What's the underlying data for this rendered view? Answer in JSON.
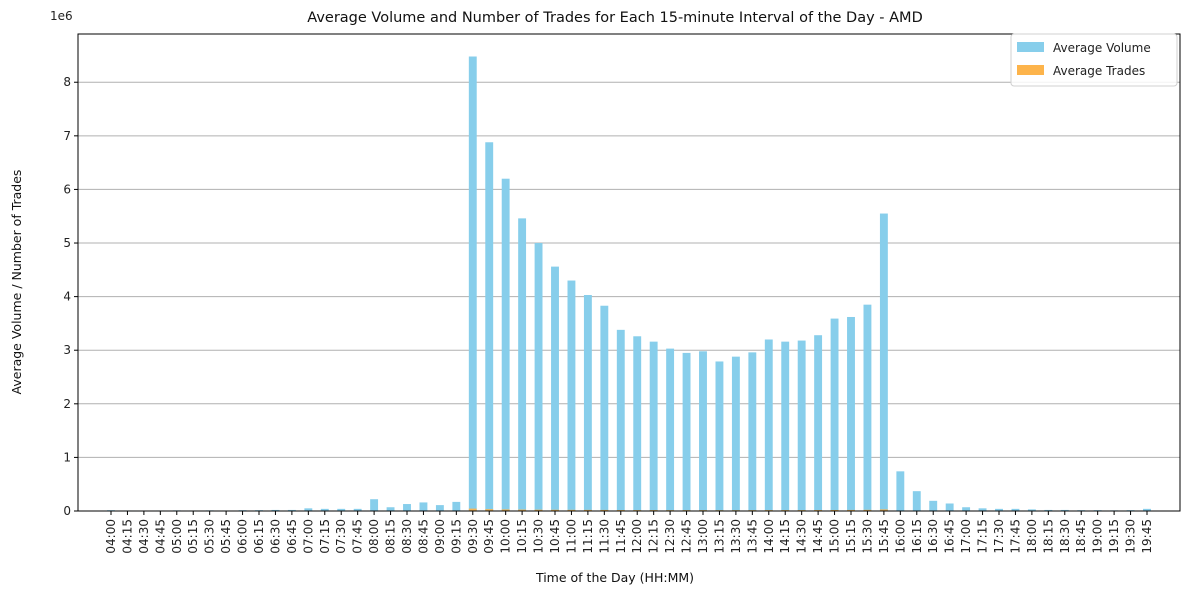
{
  "chart_data": {
    "type": "bar",
    "title": "Average Volume and Number of Trades for Each 15-minute Interval of the Day - AMD",
    "xlabel": "Time of the Day (HH:MM)",
    "ylabel": "Average Volume / Number of Trades",
    "y_scale_note": "1e6",
    "ylim": [
      0,
      8900000
    ],
    "yticks": [
      0,
      1,
      2,
      3,
      4,
      5,
      6,
      7,
      8
    ],
    "grid": "y",
    "legend_position": "top-right",
    "categories": [
      "04:00",
      "04:15",
      "04:30",
      "04:45",
      "05:00",
      "05:15",
      "05:30",
      "05:45",
      "06:00",
      "06:15",
      "06:30",
      "06:45",
      "07:00",
      "07:15",
      "07:30",
      "07:45",
      "08:00",
      "08:15",
      "08:30",
      "08:45",
      "09:00",
      "09:15",
      "09:30",
      "09:45",
      "10:00",
      "10:15",
      "10:30",
      "10:45",
      "11:00",
      "11:15",
      "11:30",
      "11:45",
      "12:00",
      "12:15",
      "12:30",
      "12:45",
      "13:00",
      "13:15",
      "13:30",
      "13:45",
      "14:00",
      "14:15",
      "14:30",
      "14:45",
      "15:00",
      "15:15",
      "15:30",
      "15:45",
      "16:00",
      "16:15",
      "16:30",
      "16:45",
      "17:00",
      "17:15",
      "17:30",
      "17:45",
      "18:00",
      "18:15",
      "18:30",
      "18:45",
      "19:00",
      "19:15",
      "19:30",
      "19:45"
    ],
    "series": [
      {
        "name": "Average Volume",
        "color": "#87ceeb",
        "values": [
          15000,
          10000,
          8000,
          10000,
          12000,
          10000,
          12000,
          10000,
          15000,
          15000,
          20000,
          20000,
          50000,
          40000,
          40000,
          40000,
          220000,
          70000,
          130000,
          160000,
          110000,
          170000,
          8480000,
          6880000,
          6200000,
          5460000,
          5000000,
          4560000,
          4300000,
          4030000,
          3830000,
          3380000,
          3260000,
          3160000,
          3030000,
          2950000,
          2980000,
          2790000,
          2880000,
          2960000,
          3200000,
          3160000,
          3180000,
          3280000,
          3590000,
          3620000,
          3850000,
          5550000,
          740000,
          370000,
          190000,
          140000,
          70000,
          50000,
          40000,
          40000,
          30000,
          20000,
          20000,
          15000,
          15000,
          12000,
          15000,
          40000
        ]
      },
      {
        "name": "Average Trades",
        "color": "#fdb44b",
        "values": [
          10,
          10,
          10,
          10,
          10,
          10,
          10,
          10,
          20,
          20,
          20,
          20,
          60,
          40,
          40,
          40,
          300,
          100,
          200,
          200,
          150,
          300,
          45000,
          35000,
          30000,
          27000,
          25000,
          23000,
          22000,
          21000,
          20000,
          18000,
          17000,
          17000,
          16000,
          16000,
          16000,
          15000,
          15000,
          16000,
          17000,
          17000,
          17000,
          18000,
          19000,
          20000,
          22000,
          30000,
          3000,
          1500,
          800,
          600,
          300,
          200,
          150,
          150,
          120,
          100,
          100,
          80,
          80,
          60,
          80,
          150
        ]
      }
    ]
  }
}
